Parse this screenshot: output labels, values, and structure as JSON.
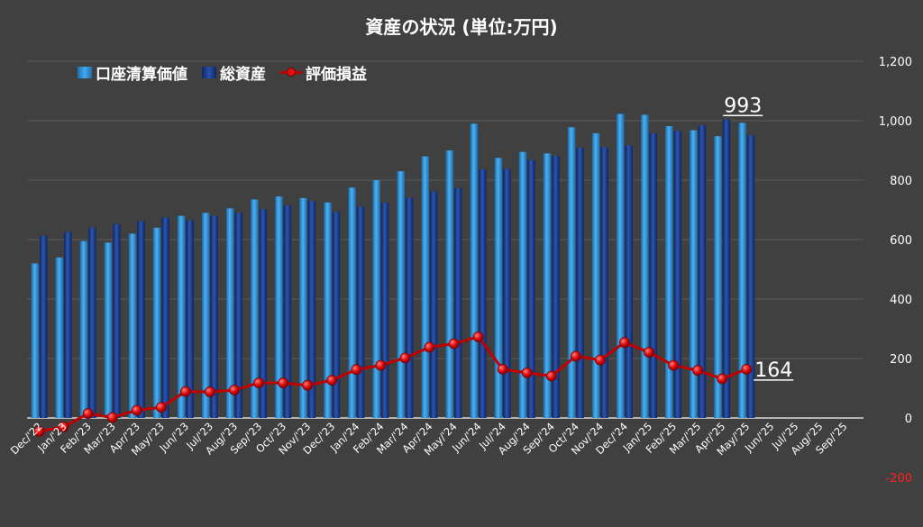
{
  "chart_data": {
    "type": "bar",
    "title": "資産の状況 (単位:万円)",
    "categories": [
      "Dec/'22",
      "Jan/'23",
      "Feb/'23",
      "Mar/'23",
      "Apr/'23",
      "May/'23",
      "Jun/'23",
      "Jul/'23",
      "Aug/'23",
      "Sep/'23",
      "Oct/'23",
      "Nov/'23",
      "Dec/'23",
      "Jan/'24",
      "Feb/'24",
      "Mar/'24",
      "Apr/'24",
      "May/'24",
      "Jun/'24",
      "Jul/'24",
      "Aug/'24",
      "Sep/'24",
      "Oct/'24",
      "Nov/'24",
      "Dec/'24",
      "Jan/'25",
      "Feb/'25",
      "Mar/'25",
      "Apr/'25",
      "May/'25",
      "Jun/'25",
      "Jul/'25",
      "Aug/'25",
      "Sep/'25"
    ],
    "series": [
      {
        "name": "口座清算価値",
        "kind": "bar",
        "color": "#2e8fd8",
        "values": [
          520,
          540,
          595,
          590,
          620,
          640,
          680,
          690,
          705,
          735,
          745,
          740,
          725,
          775,
          800,
          830,
          880,
          900,
          990,
          875,
          895,
          890,
          978,
          958,
          1023,
          1020,
          982,
          968,
          948,
          993,
          null,
          null,
          null,
          null
        ]
      },
      {
        "name": "総資産",
        "kind": "bar",
        "color": "#1a3a8c",
        "values": [
          612,
          625,
          640,
          652,
          662,
          675,
          665,
          680,
          690,
          702,
          715,
          730,
          693,
          711,
          724,
          741,
          762,
          773,
          836,
          838,
          868,
          882,
          909,
          911,
          917,
          958,
          966,
          984,
          1004,
          950,
          null,
          null,
          null,
          null
        ]
      },
      {
        "name": "評価損益",
        "kind": "line",
        "color": "#c00000",
        "values": [
          -45,
          -30,
          15,
          2,
          26,
          36,
          89,
          88,
          94,
          118,
          118,
          110,
          127,
          163,
          177,
          202,
          238,
          250,
          273,
          164,
          152,
          141,
          208,
          195,
          254,
          221,
          177,
          160,
          132,
          164,
          null,
          null,
          null,
          null
        ]
      }
    ],
    "y_ticks": [
      "1,200",
      "1,000",
      "800",
      "600",
      "400",
      "200",
      "0",
      "-200"
    ],
    "y_tick_values": [
      1200,
      1000,
      800,
      600,
      400,
      200,
      0,
      -200
    ],
    "ylim": [
      -200,
      1200
    ],
    "grid": true,
    "legend_position": "top-left",
    "annotations": [
      {
        "label": "993",
        "series": "口座清算価値",
        "value": 993,
        "category": "May/'25"
      },
      {
        "label": "164",
        "series": "評価損益",
        "value": 164,
        "category": "May/'25"
      }
    ],
    "negative_tick_color": "#ff2020"
  }
}
